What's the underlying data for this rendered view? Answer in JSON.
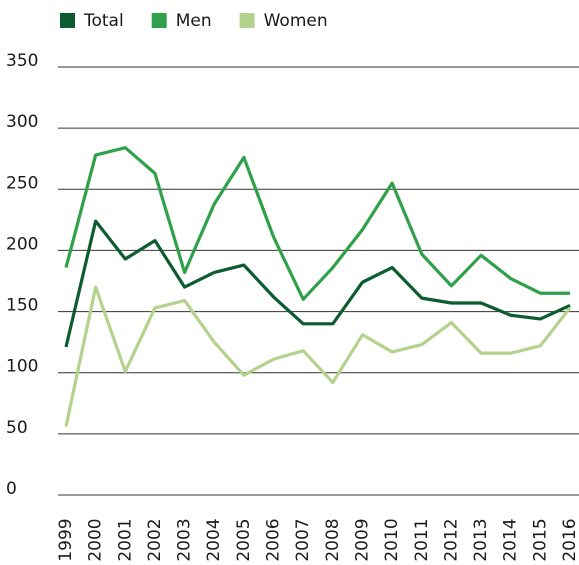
{
  "chart_data": {
    "type": "line",
    "categories": [
      "1999",
      "2000",
      "2001",
      "2002",
      "2003",
      "2004",
      "2005",
      "2006",
      "2007",
      "2008",
      "2009",
      "2010",
      "2011",
      "2012",
      "2013",
      "2014",
      "2015",
      "2016"
    ],
    "series": [
      {
        "name": "Total",
        "color": "#0b5c2e",
        "values": [
          121,
          224,
          193,
          208,
          170,
          182,
          188,
          162,
          140,
          140,
          174,
          186,
          161,
          157,
          157,
          147,
          144,
          155
        ]
      },
      {
        "name": "Men",
        "color": "#2fa14a",
        "values": [
          186,
          278,
          284,
          263,
          182,
          238,
          276,
          211,
          160,
          186,
          217,
          255,
          197,
          171,
          196,
          177,
          165,
          165
        ]
      },
      {
        "name": "Women",
        "color": "#b3d38d",
        "values": [
          56,
          170,
          101,
          153,
          159,
          125,
          98,
          111,
          118,
          92,
          131,
          117,
          123,
          141,
          116,
          116,
          122,
          153
        ]
      }
    ],
    "ylim": [
      0,
      350
    ],
    "yticks": [
      0,
      50,
      100,
      150,
      200,
      250,
      300,
      350
    ],
    "grid": true,
    "legend": "top-left"
  }
}
